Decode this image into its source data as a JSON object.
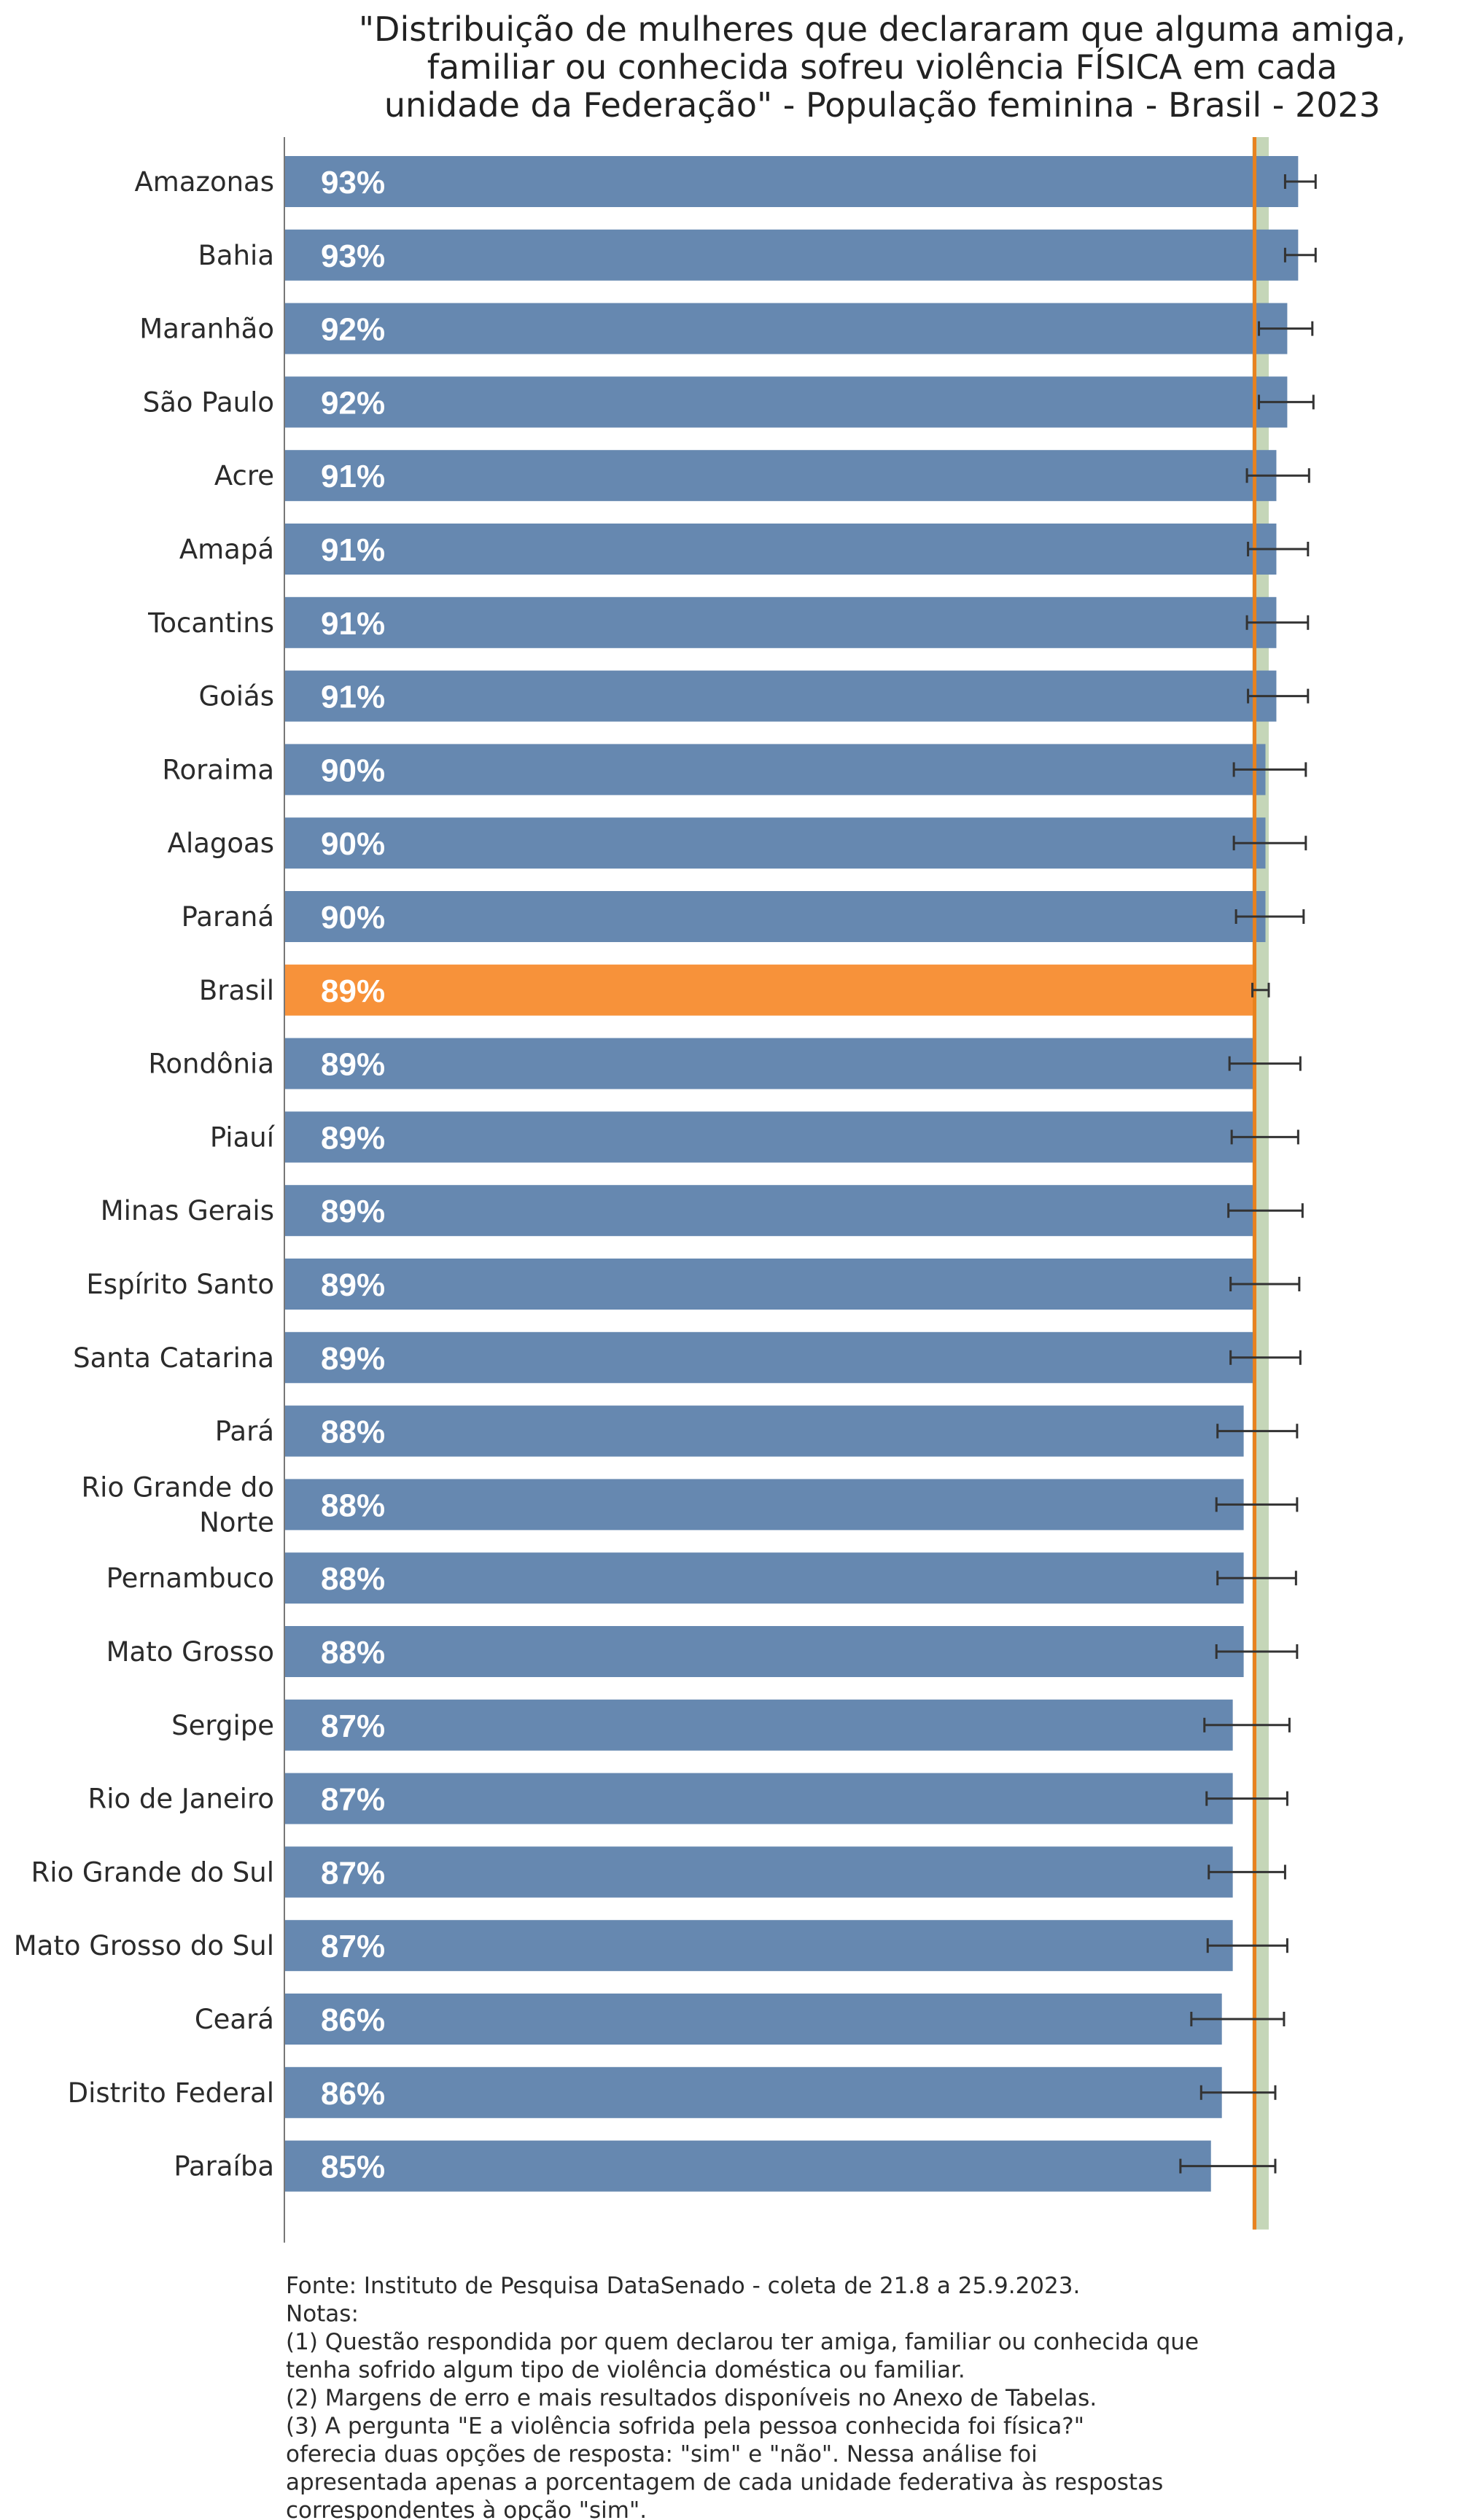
{
  "chart_data": {
    "type": "bar",
    "orientation": "horizontal",
    "title_lines": [
      "\"Distribuição de mulheres que declararam que alguma amiga,",
      "familiar ou conhecida sofreu violência FÍSICA em cada",
      "unidade da Federação\" - População feminina - Brasil - 2023"
    ],
    "xlabel": "",
    "ylabel": "",
    "xlim": [
      0,
      100
    ],
    "value_unit": "%",
    "reference": {
      "category": "Brasil",
      "value": 89,
      "ci_low": 88.8,
      "ci_high": 90.3
    },
    "bar_color": "#6688b0",
    "highlight_color": "#f7923a",
    "reference_line_color": "#e8821e",
    "reference_band_color": "#c5d6b8",
    "errorbar_color": "#333333",
    "categories": [
      {
        "label_lines": [
          "Amazonas"
        ],
        "value": 93,
        "display": "93%",
        "err_low": 91.8,
        "err_high": 94.6
      },
      {
        "label_lines": [
          "Bahia"
        ],
        "value": 93,
        "display": "93%",
        "err_low": 91.8,
        "err_high": 94.6
      },
      {
        "label_lines": [
          "Maranhão"
        ],
        "value": 92,
        "display": "92%",
        "err_low": 89.4,
        "err_high": 94.3
      },
      {
        "label_lines": [
          "São Paulo"
        ],
        "value": 92,
        "display": "92%",
        "err_low": 89.4,
        "err_high": 94.4
      },
      {
        "label_lines": [
          "Acre"
        ],
        "value": 91,
        "display": "91%",
        "err_low": 88.3,
        "err_high": 94.0
      },
      {
        "label_lines": [
          "Amapá"
        ],
        "value": 91,
        "display": "91%",
        "err_low": 88.4,
        "err_high": 93.9
      },
      {
        "label_lines": [
          "Tocantins"
        ],
        "value": 91,
        "display": "91%",
        "err_low": 88.3,
        "err_high": 93.9
      },
      {
        "label_lines": [
          "Goiás"
        ],
        "value": 91,
        "display": "91%",
        "err_low": 88.4,
        "err_high": 93.9
      },
      {
        "label_lines": [
          "Roraima"
        ],
        "value": 90,
        "display": "90%",
        "err_low": 87.1,
        "err_high": 93.7
      },
      {
        "label_lines": [
          "Alagoas"
        ],
        "value": 90,
        "display": "90%",
        "err_low": 87.1,
        "err_high": 93.7
      },
      {
        "label_lines": [
          "Paraná"
        ],
        "value": 90,
        "display": "90%",
        "err_low": 87.3,
        "err_high": 93.5
      },
      {
        "label_lines": [
          "Brasil"
        ],
        "value": 89,
        "display": "89%",
        "err_low": 88.8,
        "err_high": 90.3,
        "highlight": true
      },
      {
        "label_lines": [
          "Rondônia"
        ],
        "value": 89,
        "display": "89%",
        "err_low": 86.7,
        "err_high": 93.2
      },
      {
        "label_lines": [
          "Piauí"
        ],
        "value": 89,
        "display": "89%",
        "err_low": 86.9,
        "err_high": 93.0
      },
      {
        "label_lines": [
          "Minas Gerais"
        ],
        "value": 89,
        "display": "89%",
        "err_low": 86.6,
        "err_high": 93.4
      },
      {
        "label_lines": [
          "Espírito Santo"
        ],
        "value": 89,
        "display": "89%",
        "err_low": 86.8,
        "err_high": 93.1
      },
      {
        "label_lines": [
          "Santa Catarina"
        ],
        "value": 89,
        "display": "89%",
        "err_low": 86.8,
        "err_high": 93.2
      },
      {
        "label_lines": [
          "Pará"
        ],
        "value": 88,
        "display": "88%",
        "err_low": 85.6,
        "err_high": 92.9
      },
      {
        "label_lines": [
          "Rio Grande do",
          "Norte"
        ],
        "value": 88,
        "display": "88%",
        "err_low": 85.5,
        "err_high": 92.9
      },
      {
        "label_lines": [
          "Pernambuco"
        ],
        "value": 88,
        "display": "88%",
        "err_low": 85.6,
        "err_high": 92.8
      },
      {
        "label_lines": [
          "Mato Grosso"
        ],
        "value": 88,
        "display": "88%",
        "err_low": 85.5,
        "err_high": 92.9
      },
      {
        "label_lines": [
          "Sergipe"
        ],
        "value": 87,
        "display": "87%",
        "err_low": 84.4,
        "err_high": 92.2
      },
      {
        "label_lines": [
          "Rio de Janeiro"
        ],
        "value": 87,
        "display": "87%",
        "err_low": 84.6,
        "err_high": 92.0
      },
      {
        "label_lines": [
          "Rio Grande do Sul"
        ],
        "value": 87,
        "display": "87%",
        "err_low": 84.8,
        "err_high": 91.8
      },
      {
        "label_lines": [
          "Mato Grosso do Sul"
        ],
        "value": 87,
        "display": "87%",
        "err_low": 84.7,
        "err_high": 92.0
      },
      {
        "label_lines": [
          "Ceará"
        ],
        "value": 86,
        "display": "86%",
        "err_low": 83.2,
        "err_high": 91.7
      },
      {
        "label_lines": [
          "Distrito Federal"
        ],
        "value": 86,
        "display": "86%",
        "err_low": 84.1,
        "err_high": 90.9
      },
      {
        "label_lines": [
          "Paraíba"
        ],
        "value": 85,
        "display": "85%",
        "err_low": 82.2,
        "err_high": 90.9
      }
    ],
    "notes": [
      "Fonte: Instituto de Pesquisa DataSenado - coleta de 21.8 a 25.9.2023.",
      "Notas:",
      "(1) Questão respondida por quem declarou ter amiga, familiar ou conhecida que",
      "tenha sofrido algum tipo de violência doméstica ou familiar.",
      "(2) Margens de erro e mais resultados disponíveis no Anexo de Tabelas.",
      "(3) A pergunta \"E a violência sofrida pela pessoa conhecida foi física?\"",
      "oferecia duas opções de resposta: \"sim\" e \"não\". Nessa análise foi",
      "apresentada apenas a porcentagem de cada unidade federativa às respostas",
      "correspondentes à opção \"sim\"."
    ]
  }
}
